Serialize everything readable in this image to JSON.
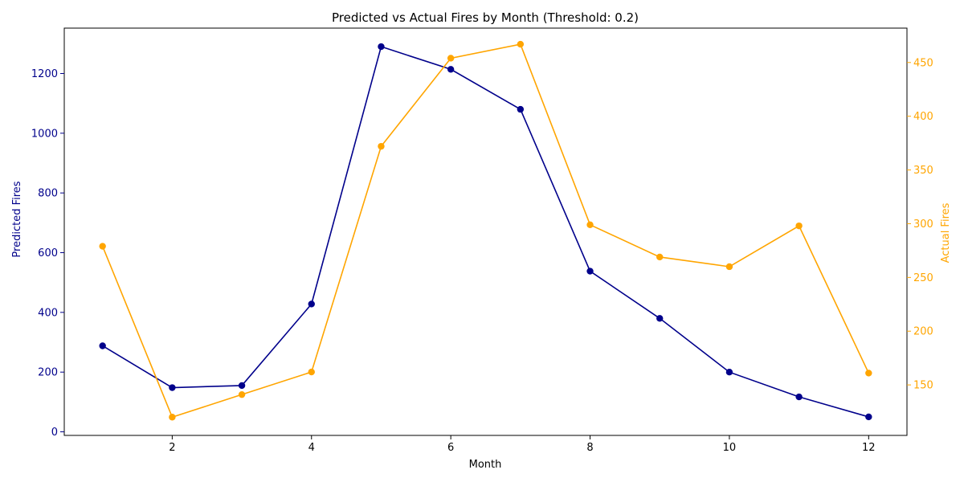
{
  "chart_data": {
    "type": "line",
    "title": "Predicted vs Actual Fires by Month (Threshold: 0.2)",
    "xlabel": "Month",
    "x": [
      1,
      2,
      3,
      4,
      5,
      6,
      7,
      8,
      9,
      10,
      11,
      12
    ],
    "xlim": [
      0.45,
      12.55
    ],
    "xticks": [
      2,
      4,
      6,
      8,
      10,
      12
    ],
    "series": [
      {
        "name": "Predicted Fires",
        "axis": "left",
        "color": "#00008b",
        "values": [
          288,
          148,
          155,
          428,
          1290,
          1214,
          1080,
          538,
          380,
          200,
          117,
          50
        ]
      },
      {
        "name": "Actual Fires",
        "axis": "right",
        "color": "#ffa500",
        "values": [
          279,
          120,
          141,
          162,
          372,
          454,
          467,
          299,
          269,
          260,
          298,
          161
        ]
      }
    ],
    "y_left": {
      "label": "Predicted Fires",
      "lim": [
        -12,
        1352
      ],
      "ticks": [
        0,
        200,
        400,
        600,
        800,
        1000,
        1200
      ]
    },
    "y_right": {
      "label": "Actual Fires",
      "lim": [
        103,
        482
      ],
      "ticks": [
        150,
        200,
        250,
        300,
        350,
        400,
        450
      ]
    }
  }
}
